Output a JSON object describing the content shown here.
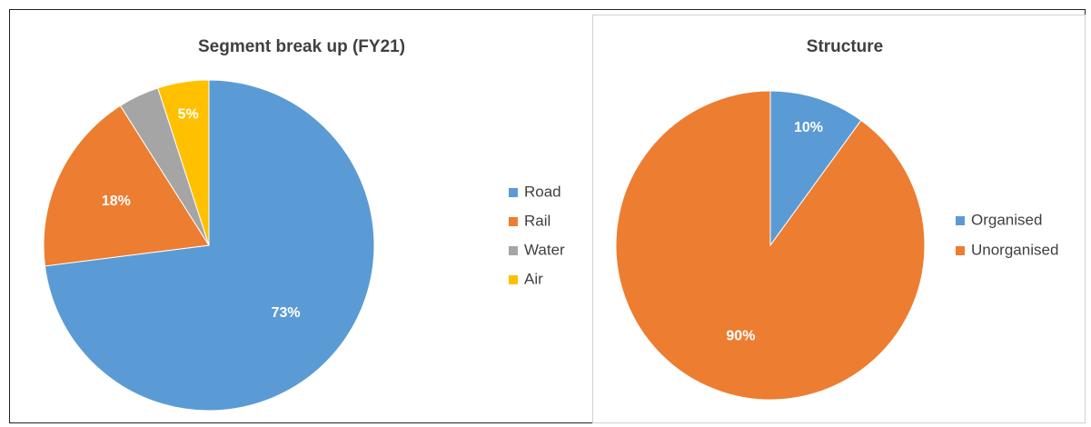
{
  "chart_data": [
    {
      "type": "pie",
      "title": "Segment break up (FY21)",
      "categories": [
        "Road",
        "Rail",
        "Water",
        "Air"
      ],
      "values": [
        73,
        18,
        4,
        5
      ],
      "value_labels": [
        "73%",
        "18%",
        null,
        "5%"
      ],
      "colors": [
        "#5b9bd5",
        "#ed7d31",
        "#a5a5a5",
        "#ffc000"
      ],
      "legend": "right"
    },
    {
      "type": "pie",
      "title": "Structure",
      "categories": [
        "Organised",
        "Unorganised"
      ],
      "values": [
        10,
        90
      ],
      "value_labels": [
        "10%",
        "90%"
      ],
      "colors": [
        "#5b9bd5",
        "#ed7d31"
      ],
      "legend": "right"
    }
  ]
}
